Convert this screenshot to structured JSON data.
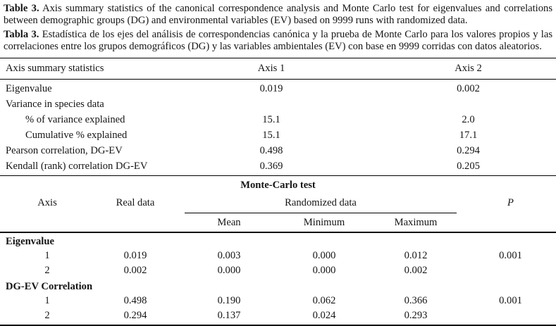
{
  "captions": {
    "en_label": "Table 3.",
    "en_text": "Axis summary statistics of the canonical correspondence analysis and Monte Carlo test for eigenvalues and correlations between demographic groups (DG) and environmental variables (EV) based on 9999 runs with randomized data.",
    "es_label": "Tabla 3.",
    "es_text": "Estadística de los ejes del análisis de correspondencias canónica y la prueba de Monte Carlo para los valores propios y las correlaciones entre los grupos demográficos (DG) y las variables ambientales (EV) con base en 9999 corridas con datos aleatorios."
  },
  "axis_summary": {
    "header": {
      "label": "Axis summary statistics",
      "axis1": "Axis 1",
      "axis2": "Axis 2"
    },
    "rows": [
      {
        "label": "Eigenvalue",
        "axis1": "0.019",
        "axis2": "0.002"
      },
      {
        "label": "Variance in species data",
        "axis1": "",
        "axis2": ""
      },
      {
        "label": "% of variance explained",
        "axis1": "15.1",
        "axis2": "2.0"
      },
      {
        "label": "Cumulative % explained",
        "axis1": "15.1",
        "axis2": "17.1"
      },
      {
        "label": "Pearson correlation, DG-EV",
        "axis1": "0.498",
        "axis2": "0.294"
      },
      {
        "label": "Kendall (rank) correlation DG-EV",
        "axis1": "0.369",
        "axis2": "0.205"
      }
    ]
  },
  "monte_carlo": {
    "title": "Monte-Carlo test",
    "header": {
      "axis": "Axis",
      "real_data": "Real data",
      "randomized": "Randomized data",
      "p": "P"
    },
    "subheader": {
      "mean": "Mean",
      "minimum": "Minimum",
      "maximum": "Maximum"
    },
    "sections": [
      {
        "name": "Eigenvalue",
        "rows": [
          {
            "axis": "1",
            "real": "0.019",
            "mean": "0.003",
            "min": "0.000",
            "max": "0.012",
            "p": "0.001"
          },
          {
            "axis": "2",
            "real": "0.002",
            "mean": "0.000",
            "min": "0.000",
            "max": "0.002",
            "p": ""
          }
        ]
      },
      {
        "name": "DG-EV Correlation",
        "rows": [
          {
            "axis": "1",
            "real": "0.498",
            "mean": "0.190",
            "min": "0.062",
            "max": "0.366",
            "p": "0.001"
          },
          {
            "axis": "2",
            "real": "0.294",
            "mean": "0.137",
            "min": "0.024",
            "max": "0.293",
            "p": ""
          }
        ]
      }
    ]
  }
}
